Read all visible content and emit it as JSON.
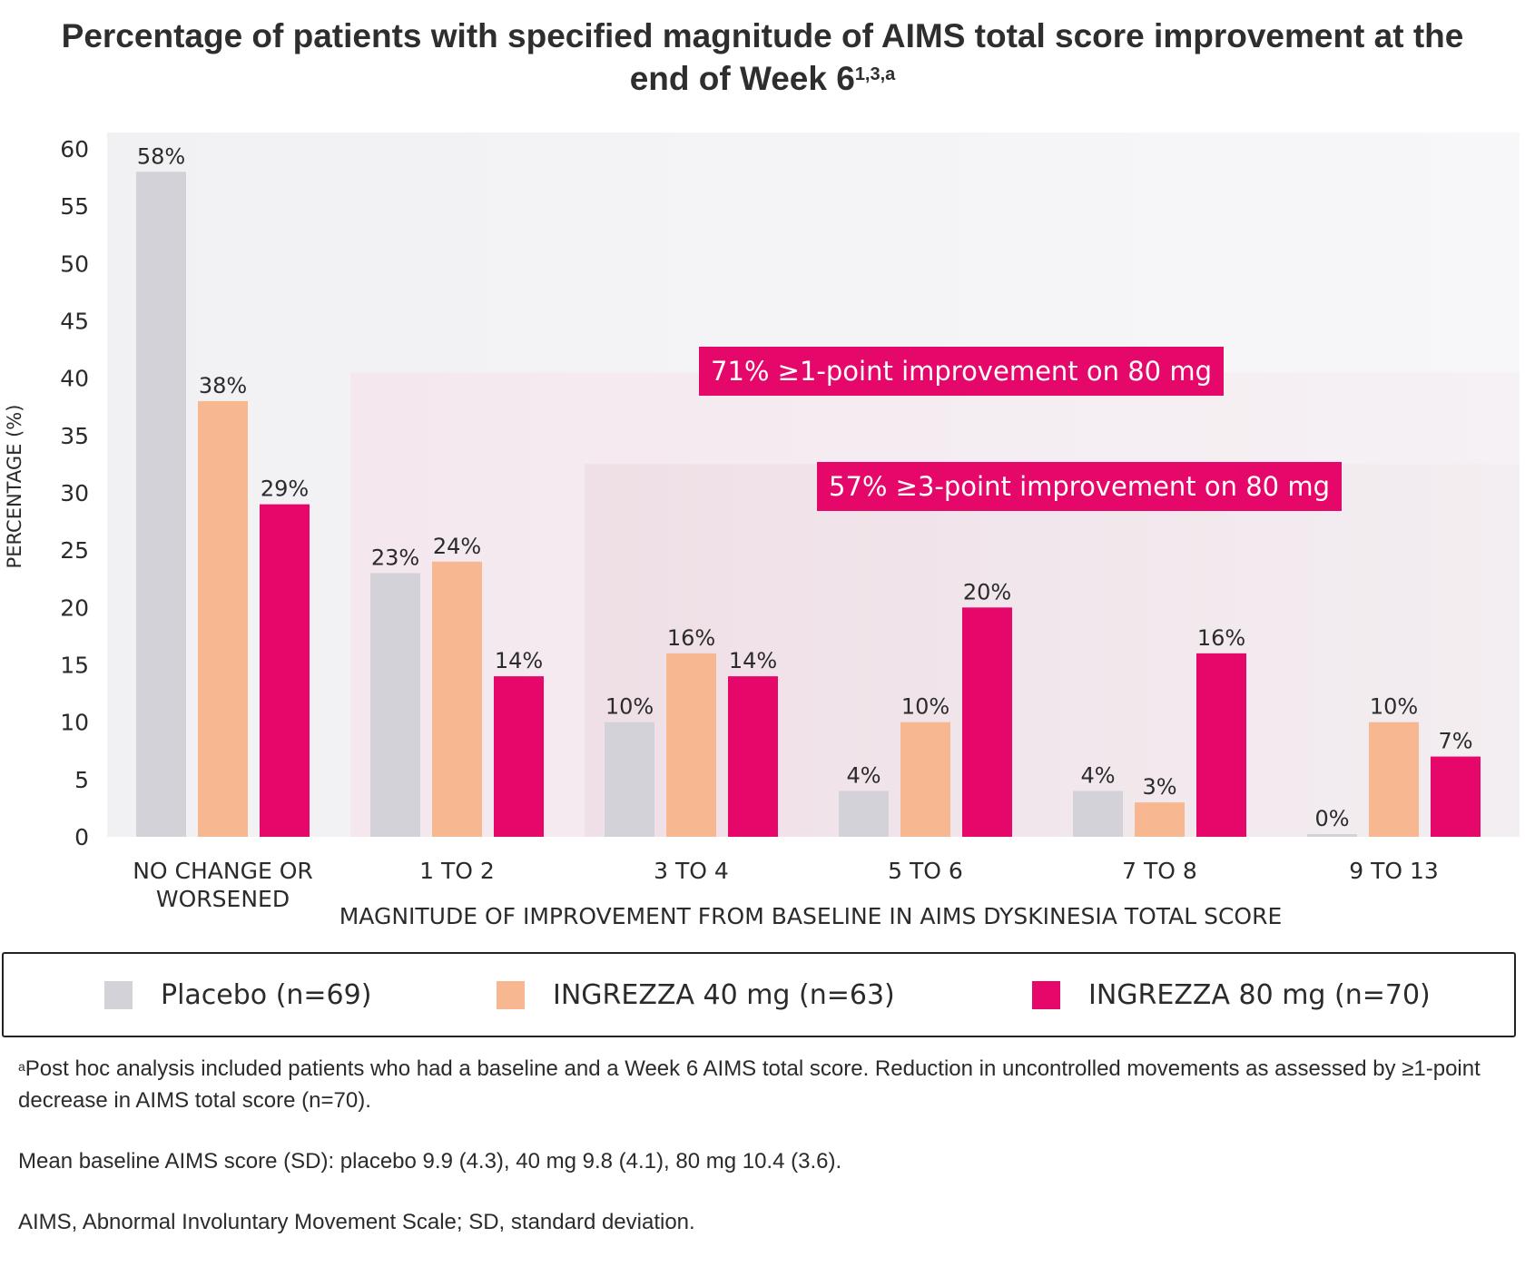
{
  "title": {
    "main": "Percentage of patients with specified magnitude of AIMS total score improvement at the end of Week 6",
    "superscript": "1,3,a"
  },
  "chart_data": {
    "type": "bar",
    "categories": [
      "NO CHANGE OR WORSENED",
      "1 TO 2",
      "3 TO 4",
      "5 TO 6",
      "7 TO 8",
      "9 TO 13"
    ],
    "category_lines": [
      [
        "NO CHANGE OR",
        "WORSENED"
      ],
      [
        "1 TO 2"
      ],
      [
        "3 TO 4"
      ],
      [
        "5 TO 6"
      ],
      [
        "7 TO 8"
      ],
      [
        "9 TO 13"
      ]
    ],
    "series": [
      {
        "name": "Placebo (n=69)",
        "color": "#d3d2d8",
        "values": [
          58,
          23,
          10,
          4,
          4,
          0
        ],
        "labels": [
          "58%",
          "23%",
          "10%",
          "4%",
          "4%",
          "0%"
        ]
      },
      {
        "name": "INGREZZA 40 mg (n=63)",
        "color": "#f7b891",
        "values": [
          38,
          24,
          16,
          10,
          3,
          10
        ],
        "labels": [
          "38%",
          "24%",
          "16%",
          "10%",
          "3%",
          "10%"
        ]
      },
      {
        "name": "INGREZZA 80 mg (n=70)",
        "color": "#e5086a",
        "values": [
          29,
          14,
          14,
          20,
          16,
          7
        ],
        "labels": [
          "29%",
          "14%",
          "14%",
          "20%",
          "16%",
          "7%"
        ]
      }
    ],
    "xlabel": "MAGNITUDE OF IMPROVEMENT FROM BASELINE IN AIMS DYSKINESIA TOTAL SCORE",
    "ylabel": "PERCENTAGE (%)",
    "ylim": [
      0,
      60
    ],
    "yticks": [
      0,
      5,
      10,
      15,
      20,
      25,
      30,
      35,
      40,
      45,
      50,
      55,
      60
    ],
    "grid": false,
    "legend_position": "bottom",
    "annotations": [
      {
        "text": "71% ≥1-point improvement on 80 mg",
        "from_category": "1 TO 2"
      },
      {
        "text": "57% ≥3-point improvement on 80 mg",
        "from_category": "3 TO 4"
      }
    ],
    "annotation_color": "#e5086a"
  },
  "legend": {
    "items": [
      {
        "label": "Placebo (n=69)",
        "color": "#d3d2d8"
      },
      {
        "label": "INGREZZA 40 mg (n=63)",
        "color": "#f7b891"
      },
      {
        "label": "INGREZZA 80 mg (n=70)",
        "color": "#e5086a"
      }
    ]
  },
  "footnotes": {
    "a_marker": "a",
    "a_text": "Post hoc analysis included patients who had a baseline and a Week 6 AIMS total score. Reduction in uncontrolled movements as assessed by ≥1-point decrease in AIMS total score (n=70).",
    "baseline": "Mean baseline AIMS score (SD): placebo 9.9 (4.3), 40 mg 9.8 (4.1), 80 mg 10.4 (3.6).",
    "abbreviations": "AIMS, Abnormal Involuntary Movement Scale; SD, standard deviation."
  }
}
